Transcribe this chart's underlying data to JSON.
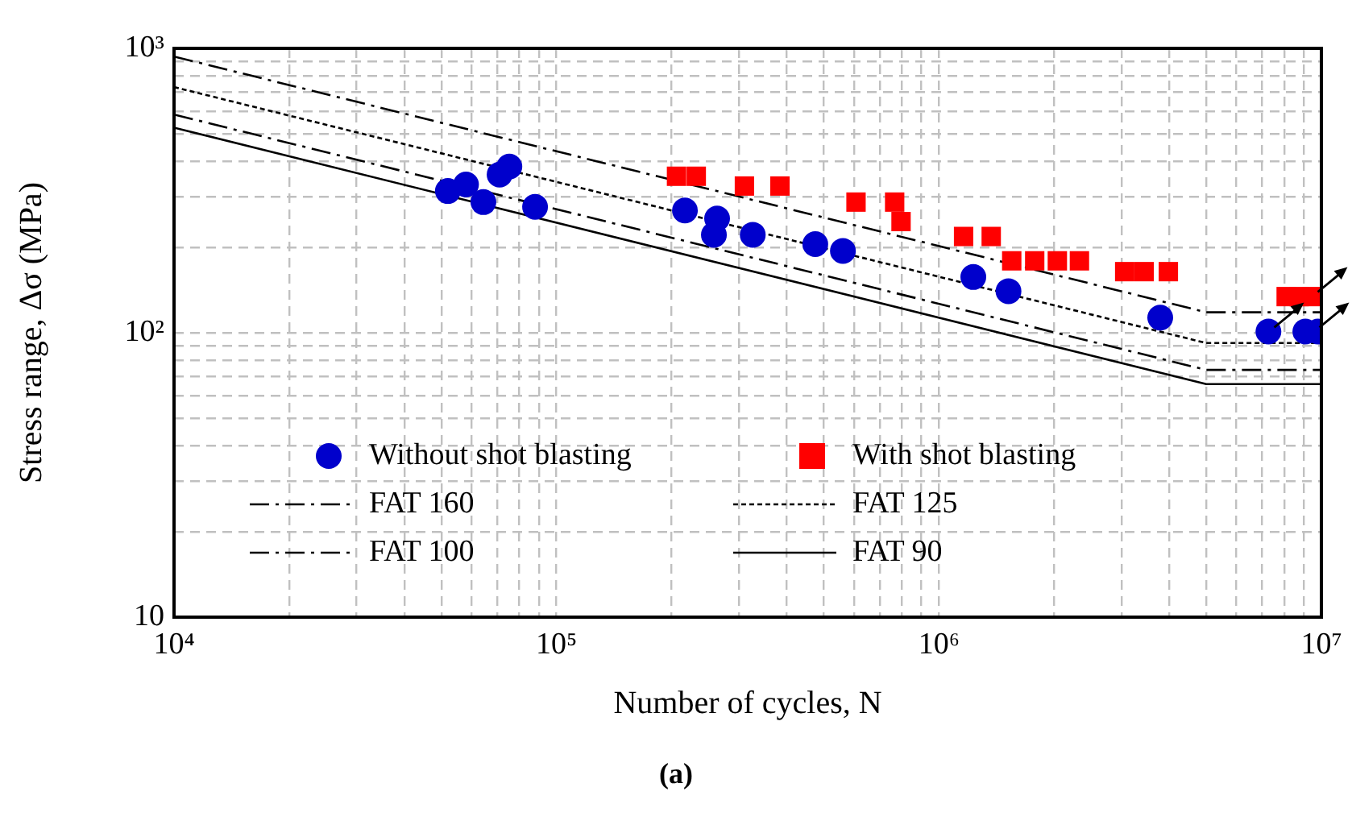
{
  "chart_data": {
    "type": "scatter",
    "xlabel": "Number of cycles, N",
    "ylabel": "Stress range, Δσ (MPa)",
    "log": "xy",
    "grid": true,
    "legend": "bottom",
    "xlim": [
      10000,
      10000000
    ],
    "ylim": [
      10,
      1000
    ],
    "xticks": [
      {
        "value": 10000,
        "label": "10⁴"
      },
      {
        "value": 20000,
        "label": null
      },
      {
        "value": 30000,
        "label": null
      },
      {
        "value": 40000,
        "label": null
      },
      {
        "value": 50000,
        "label": null
      },
      {
        "value": 60000,
        "label": null
      },
      {
        "value": 70000,
        "label": null
      },
      {
        "value": 80000,
        "label": null
      },
      {
        "value": 90000,
        "label": null
      },
      {
        "value": 100000,
        "label": "10⁵"
      },
      {
        "value": 200000,
        "label": null
      },
      {
        "value": 300000,
        "label": null
      },
      {
        "value": 400000,
        "label": null
      },
      {
        "value": 500000,
        "label": null
      },
      {
        "value": 600000,
        "label": null
      },
      {
        "value": 700000,
        "label": null
      },
      {
        "value": 800000,
        "label": null
      },
      {
        "value": 900000,
        "label": null
      },
      {
        "value": 1000000,
        "label": "10⁶"
      },
      {
        "value": 2000000,
        "label": null
      },
      {
        "value": 3000000,
        "label": null
      },
      {
        "value": 4000000,
        "label": null
      },
      {
        "value": 5000000,
        "label": null
      },
      {
        "value": 6000000,
        "label": null
      },
      {
        "value": 7000000,
        "label": null
      },
      {
        "value": 8000000,
        "label": null
      },
      {
        "value": 9000000,
        "label": null
      },
      {
        "value": 10000000,
        "label": "10⁷"
      }
    ],
    "yticks": [
      10,
      {
        "value": 20,
        "label": null
      },
      {
        "value": 30,
        "label": null
      },
      {
        "value": 40,
        "label": null
      },
      {
        "value": 50,
        "label": null
      },
      {
        "value": 60,
        "label": null
      },
      {
        "value": 70,
        "label": null
      },
      {
        "value": 80,
        "label": null
      },
      {
        "value": 90,
        "label": null
      },
      {
        "value": 100,
        "label": "10²"
      },
      {
        "value": 200,
        "label": null
      },
      {
        "value": 300,
        "label": null
      },
      {
        "value": 400,
        "label": null
      },
      {
        "value": 500,
        "label": null
      },
      {
        "value": 600,
        "label": null
      },
      {
        "value": 700,
        "label": null
      },
      {
        "value": 800,
        "label": null
      },
      {
        "value": 900,
        "label": null
      },
      {
        "value": 1000,
        "label": "10³"
      }
    ],
    "annotations": [
      "(a)"
    ],
    "series": [
      {
        "name": "Without shot blasting",
        "type": "scatter",
        "marker": "circle",
        "color": "#0000cc",
        "x": [
          52000,
          58000,
          64400,
          71000,
          75300,
          87900,
          216700,
          263000,
          258000,
          326000,
          475000,
          561000,
          1230000,
          1520000,
          3790000,
          7270000,
          9080000,
          9800000
        ],
        "values": [
          315,
          332,
          288,
          360,
          384,
          277,
          269,
          252,
          221,
          221,
          205,
          194,
          157,
          140,
          113,
          101,
          101,
          101
        ]
      },
      {
        "name": "With shot blasting",
        "type": "scatter",
        "marker": "square",
        "color": "#ff0000",
        "x": [
          206000,
          232000,
          310000,
          384000,
          607000,
          766000,
          796000,
          1160000,
          1370000,
          1550000,
          1780000,
          2040000,
          2330000,
          3060000,
          3440000,
          3980000,
          8090000,
          8740000,
          9440000
        ],
        "values": [
          355,
          355,
          328,
          328,
          288,
          288,
          246,
          218,
          218,
          179,
          179,
          179,
          179,
          164,
          164,
          164,
          134,
          134,
          134
        ]
      },
      {
        "name": "FAT 160",
        "type": "line",
        "line_style": "dashed",
        "marker": "none",
        "color": "#000000",
        "x": [
          10000,
          5000000,
          10000000
        ],
        "values": [
          936,
          118,
          118
        ]
      },
      {
        "name": "FAT 125",
        "type": "line",
        "line_style": "dotted",
        "marker": "none",
        "color": "#000000",
        "x": [
          10000,
          5000000,
          10000000
        ],
        "values": [
          731,
          92,
          92
        ]
      },
      {
        "name": "FAT 100",
        "type": "line",
        "line_style": "dashed",
        "marker": "none",
        "color": "#000000",
        "x": [
          10000,
          5000000,
          10000000
        ],
        "values": [
          585,
          74,
          74
        ]
      },
      {
        "name": "FAT 90",
        "type": "line",
        "line_style": "solid",
        "marker": "none",
        "color": "#000000",
        "x": [
          10000,
          5000000,
          10000000
        ],
        "values": [
          526,
          66,
          66
        ]
      }
    ]
  }
}
